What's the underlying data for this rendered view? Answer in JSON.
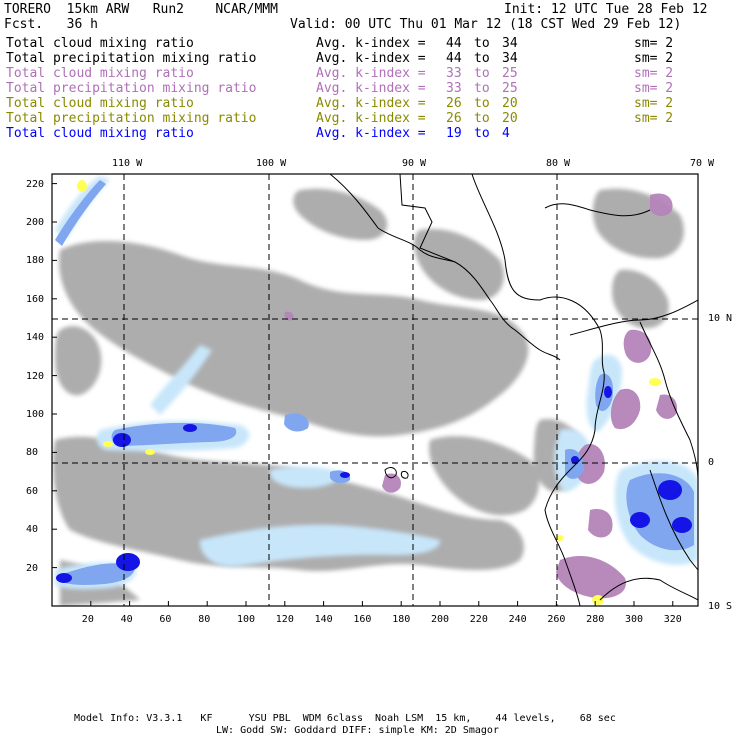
{
  "header": {
    "model": "TORERO  15km ARW   Run2    NCAR/MMM",
    "forecast": "Fcst.   36 h",
    "init": "Init: 12 UTC Tue 28 Feb 12",
    "valid": "Valid: 00 UTC Thu 01 Mar 12 (18 CST Wed 29 Feb 12)"
  },
  "fields": [
    {
      "name": "Total cloud mixing ratio",
      "avg": "Avg. k-index =",
      "from": "44",
      "to_word": "to",
      "to": "34",
      "sm": "sm= 2",
      "color": "#000000"
    },
    {
      "name": "Total precipitation mixing ratio",
      "avg": "Avg. k-index =",
      "from": "44",
      "to_word": "to",
      "to": "34",
      "sm": "sm= 2",
      "color": "#000000"
    },
    {
      "name": "Total cloud mixing ratio",
      "avg": "Avg. k-index =",
      "from": "33",
      "to_word": "to",
      "to": "25",
      "sm": "sm= 2",
      "color": "#b070b8"
    },
    {
      "name": "Total precipitation mixing ratio",
      "avg": "Avg. k-index =",
      "from": "33",
      "to_word": "to",
      "to": "25",
      "sm": "sm= 2",
      "color": "#b070b8"
    },
    {
      "name": "Total cloud mixing ratio",
      "avg": "Avg. k-index =",
      "from": "26",
      "to_word": "to",
      "to": "20",
      "sm": "sm= 2",
      "color": "#8a8a00"
    },
    {
      "name": "Total precipitation mixing ratio",
      "avg": "Avg. k-index =",
      "from": "26",
      "to_word": "to",
      "to": "20",
      "sm": "sm= 2",
      "color": "#8a8a00"
    },
    {
      "name": "Total cloud mixing ratio",
      "avg": "Avg. k-index =",
      "from": "19",
      "to_word": "to",
      "to": "4",
      "sm": "",
      "color": "#0000ff"
    }
  ],
  "map": {
    "lon_labels": [
      "110 W",
      "100 W",
      "90 W",
      "80 W",
      "70 W"
    ],
    "lat_labels": [
      "10 N",
      "0",
      "10 S"
    ],
    "x_ticks": [
      "20",
      "40",
      "60",
      "80",
      "100",
      "120",
      "140",
      "160",
      "180",
      "200",
      "220",
      "240",
      "260",
      "280",
      "300",
      "320"
    ],
    "y_ticks": [
      "20",
      "40",
      "60",
      "80",
      "100",
      "120",
      "140",
      "160",
      "180",
      "200",
      "220"
    ],
    "colors": {
      "cloud_gray": "#a9a9a9",
      "light_blue": "#c8e6fa",
      "mid_blue": "#7fa6ee",
      "dark_blue": "#1414e6",
      "purple": "#b584b9",
      "yellow": "#ffff55",
      "coast": "#000000"
    }
  },
  "footer": {
    "line1": "Model Info: V3.3.1   KF      YSU PBL  WDM 6class  Noah LSM  15 km,    44 levels,    68 sec",
    "line2": "LW: Godd SW: Goddard DIFF: simple KM: 2D Smagor"
  }
}
